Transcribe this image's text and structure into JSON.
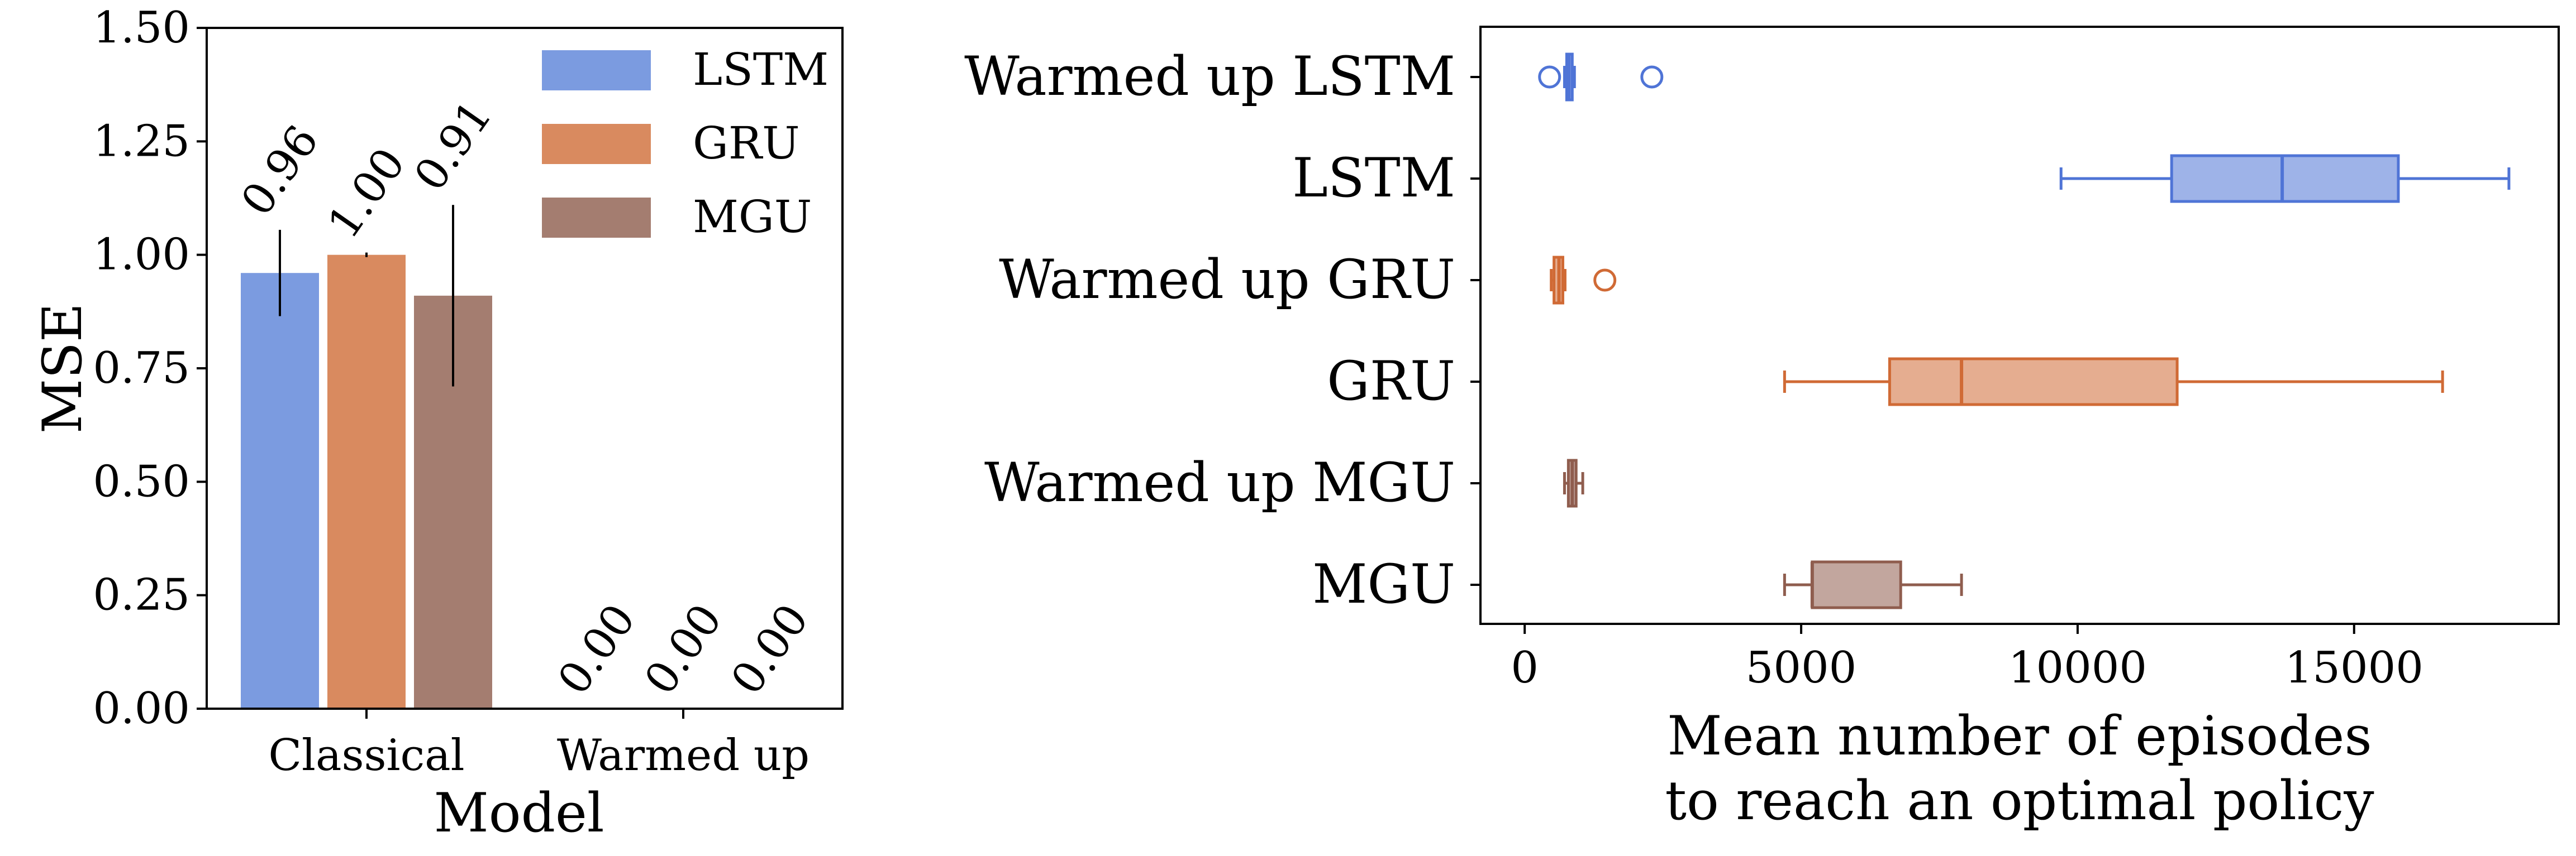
{
  "chart_data": [
    {
      "type": "bar",
      "title": "",
      "xlabel": "Model",
      "ylabel": "MSE",
      "categories": [
        "Classical",
        "Warmed up"
      ],
      "ylim": [
        0,
        1.5
      ],
      "yticks": [
        "0.00",
        "0.25",
        "0.50",
        "0.75",
        "1.00",
        "1.25",
        "1.50"
      ],
      "grid": false,
      "legend": "top-right",
      "series": [
        {
          "name": "LSTM",
          "color": "#7b9be0",
          "values": [
            0.96,
            0.0
          ],
          "value_labels": [
            "0.96",
            "0.00"
          ],
          "error": [
            0.095,
            0.0
          ]
        },
        {
          "name": "GRU",
          "color": "#d98a5f",
          "values": [
            1.0,
            0.0
          ],
          "value_labels": [
            "1.00",
            "0.00"
          ],
          "error": [
            0.005,
            0.0
          ]
        },
        {
          "name": "MGU",
          "color": "#a47d70",
          "values": [
            0.91,
            0.0
          ],
          "value_labels": [
            "0.91",
            "0.00"
          ],
          "error": [
            0.2,
            0.0
          ]
        }
      ]
    },
    {
      "type": "box",
      "orientation": "horizontal",
      "title": "",
      "xlabel": [
        "Mean number of episodes",
        "to reach an optimal policy"
      ],
      "ylabel": "",
      "xlim": [
        -800,
        18700
      ],
      "xticks": [
        "0",
        "5000",
        "10000",
        "15000"
      ],
      "grid": false,
      "categories": [
        "Warmed up LSTM",
        "LSTM",
        "Warmed up GRU",
        "GRU",
        "Warmed up MGU",
        "MGU"
      ],
      "boxes": [
        {
          "name": "Warmed up LSTM",
          "color": "#4f74d6",
          "whislo": 720,
          "q1": 760,
          "med": 800,
          "q3": 860,
          "whishi": 900,
          "fliers": [
            450,
            2300
          ]
        },
        {
          "name": "LSTM",
          "color": "#4f74d6",
          "whislo": 9700,
          "q1": 11700,
          "med": 13700,
          "q3": 15800,
          "whishi": 17800,
          "fliers": []
        },
        {
          "name": "Warmed up GRU",
          "color": "#d06a35",
          "whislo": 480,
          "q1": 530,
          "med": 620,
          "q3": 690,
          "whishi": 730,
          "fliers": [
            1450
          ]
        },
        {
          "name": "GRU",
          "color": "#d06a35",
          "whislo": 4700,
          "q1": 6600,
          "med": 7900,
          "q3": 11800,
          "whishi": 16600,
          "fliers": []
        },
        {
          "name": "Warmed up MGU",
          "color": "#8f5d4e",
          "whislo": 720,
          "q1": 790,
          "med": 860,
          "q3": 930,
          "whishi": 1050,
          "fliers": []
        },
        {
          "name": "MGU",
          "color": "#8f5d4e",
          "whislo": 4700,
          "q1": 5200,
          "med": 5200,
          "q3": 6800,
          "whishi": 7900,
          "fliers": []
        }
      ]
    }
  ]
}
